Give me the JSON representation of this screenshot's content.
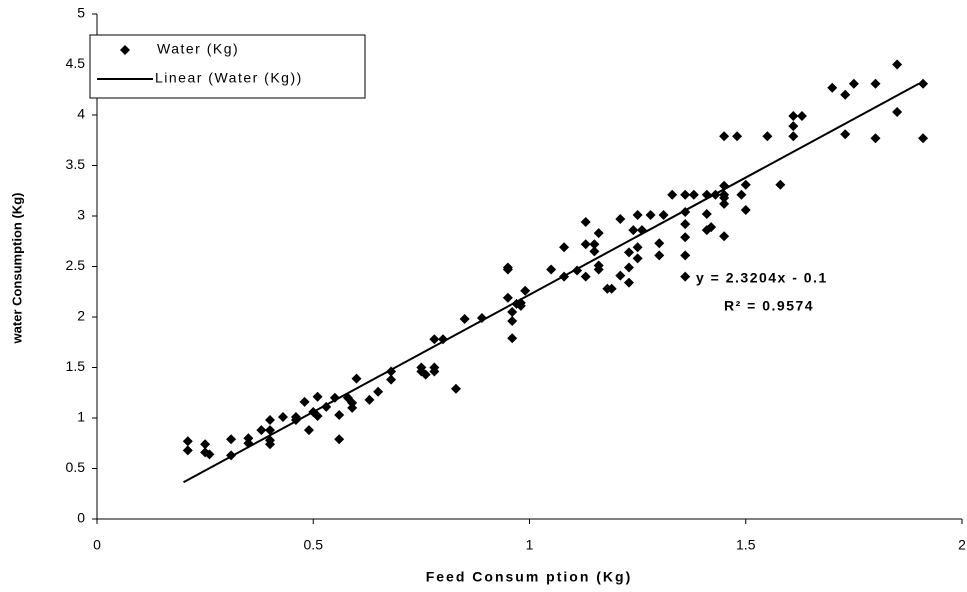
{
  "chart_data": {
    "type": "scatter",
    "x_label": "Feed Consum ption (Kg)",
    "y_label": "water Consumption (Kg)",
    "xlim": [
      0,
      2
    ],
    "xticks": [
      0,
      0.5,
      1,
      1.5,
      2
    ],
    "ylim": [
      0,
      5
    ],
    "yticks": [
      0,
      0.5,
      1,
      1.5,
      2,
      2.5,
      3,
      3.5,
      4,
      4.5,
      5
    ],
    "legend": "upper left",
    "series": [
      {
        "name": "Water (Kg)",
        "color": "#000000",
        "x": [
          0.21,
          0.21,
          0.25,
          0.25,
          0.26,
          0.31,
          0.31,
          0.35,
          0.35,
          0.38,
          0.4,
          0.4,
          0.4,
          0.4,
          0.43,
          0.46,
          0.46,
          0.48,
          0.49,
          0.5,
          0.51,
          0.51,
          0.53,
          0.55,
          0.56,
          0.56,
          0.58,
          0.59,
          0.59,
          0.6,
          0.63,
          0.65,
          0.68,
          0.68,
          0.75,
          0.75,
          0.76,
          0.78,
          0.78,
          0.78,
          0.8,
          0.83,
          0.85,
          0.89,
          0.95,
          0.95,
          0.95,
          0.96,
          0.96,
          0.96,
          0.97,
          0.98,
          0.98,
          0.99,
          1.05,
          1.08,
          1.08,
          1.11,
          1.13,
          1.13,
          1.13,
          1.15,
          1.15,
          1.16,
          1.16,
          1.16,
          1.18,
          1.19,
          1.21,
          1.21,
          1.23,
          1.23,
          1.23,
          1.24,
          1.25,
          1.25,
          1.25,
          1.26,
          1.28,
          1.31,
          1.3,
          1.3,
          1.33,
          1.36,
          1.36,
          1.36,
          1.36,
          1.36,
          1.36,
          1.38,
          1.41,
          1.41,
          1.41,
          1.42,
          1.43,
          1.45,
          1.45,
          1.45,
          1.45,
          1.45,
          1.45,
          1.48,
          1.49,
          1.5,
          1.5,
          1.55,
          1.58,
          1.61,
          1.61,
          1.61,
          1.63,
          1.7,
          1.73,
          1.73,
          1.75,
          1.8,
          1.8,
          1.85,
          1.85,
          1.91,
          1.91
        ],
        "values": [
          0.77,
          0.68,
          0.74,
          0.66,
          0.64,
          0.79,
          0.63,
          0.8,
          0.75,
          0.88,
          0.98,
          0.88,
          0.78,
          0.74,
          1.01,
          1.01,
          0.98,
          1.16,
          0.88,
          1.06,
          1.21,
          1.02,
          1.11,
          1.2,
          1.03,
          0.79,
          1.2,
          1.15,
          1.1,
          1.39,
          1.18,
          1.26,
          1.46,
          1.38,
          1.5,
          1.46,
          1.43,
          1.5,
          1.46,
          1.78,
          1.78,
          1.29,
          1.98,
          1.99,
          2.19,
          2.47,
          2.49,
          1.96,
          1.79,
          2.05,
          2.13,
          2.11,
          2.14,
          2.26,
          2.47,
          2.4,
          2.69,
          2.46,
          2.94,
          2.72,
          2.4,
          2.72,
          2.65,
          2.83,
          2.51,
          2.47,
          2.28,
          2.28,
          2.97,
          2.41,
          2.64,
          2.49,
          2.34,
          2.86,
          3.01,
          2.69,
          2.58,
          2.86,
          3.01,
          3.01,
          2.73,
          2.61,
          3.21,
          3.21,
          3.04,
          2.92,
          2.79,
          2.4,
          2.61,
          3.21,
          3.21,
          3.02,
          2.86,
          2.89,
          3.21,
          3.18,
          3.3,
          3.21,
          3.12,
          2.8,
          3.79,
          3.79,
          3.21,
          3.31,
          3.06,
          3.79,
          3.31,
          3.99,
          3.89,
          3.79,
          3.99,
          4.27,
          4.2,
          3.81,
          4.31,
          4.31,
          3.77,
          4.5,
          4.03,
          4.31,
          3.77
        ]
      }
    ],
    "trendline": {
      "name": "Linear (Water (Kg))",
      "color": "#000000",
      "x": [
        0.2,
        1.9
      ],
      "y": [
        0.364,
        4.309
      ],
      "equation": "y = 2.3204x - 0.1",
      "r2": "R² = 0.9574"
    }
  }
}
